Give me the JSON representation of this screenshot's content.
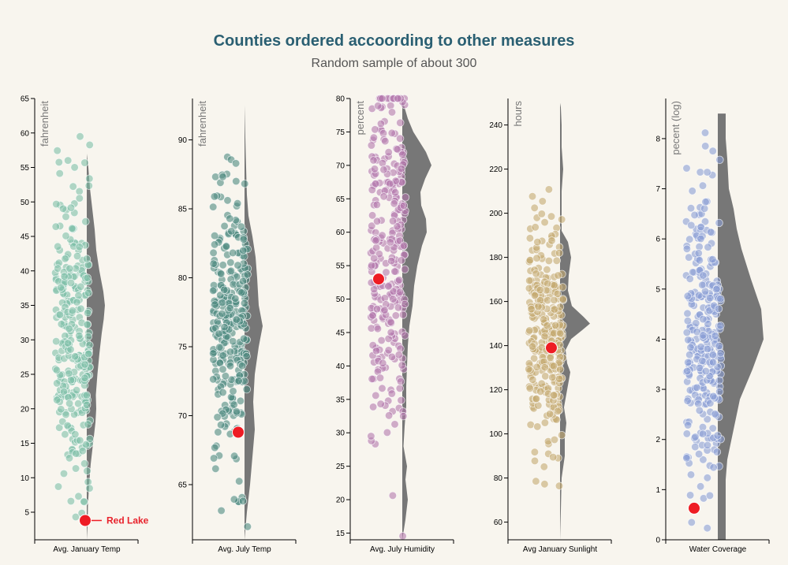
{
  "title": "Counties ordered accoording to other measures",
  "subtitle": "Random sample of about 300",
  "highlight": {
    "name": "Red Lake",
    "color": "#ee1c24"
  },
  "chart_data": [
    {
      "type": "scatter",
      "xlabel": "Avg. January Temp",
      "unit": "fahrenheit",
      "ylim": [
        1,
        65
      ],
      "ticks": [
        5,
        10,
        15,
        20,
        25,
        30,
        35,
        40,
        45,
        50,
        55,
        60,
        65
      ],
      "color": "#7fbfa8",
      "stroke": "#5a9e88",
      "mean": 32,
      "sd": 11,
      "min": 1,
      "max": 65,
      "seed": 11,
      "density": [
        [
          1,
          0
        ],
        [
          3,
          1
        ],
        [
          6,
          1.5
        ],
        [
          9,
          3
        ],
        [
          12,
          5
        ],
        [
          15,
          8
        ],
        [
          18,
          11
        ],
        [
          20,
          12
        ],
        [
          22,
          11.5
        ],
        [
          25,
          13.5
        ],
        [
          28,
          16
        ],
        [
          31,
          19
        ],
        [
          33,
          21.5
        ],
        [
          35,
          23
        ],
        [
          37,
          21
        ],
        [
          40,
          16
        ],
        [
          43,
          12
        ],
        [
          46,
          10
        ],
        [
          49,
          7
        ],
        [
          52,
          4
        ],
        [
          55,
          2
        ],
        [
          57,
          0
        ]
      ],
      "highlight_value": 3.8,
      "highlight_label": "Red Lake"
    },
    {
      "type": "scatter",
      "xlabel": "Avg. July Temp",
      "unit": "fahrenheit",
      "ylim": [
        61,
        93
      ],
      "ticks": [
        65,
        70,
        75,
        80,
        85,
        90
      ],
      "color": "#4e8a80",
      "stroke": "#3a6e66",
      "mean": 76.5,
      "sd": 5,
      "min": 61,
      "max": 92,
      "seed": 23,
      "density": [
        [
          61,
          0
        ],
        [
          63,
          3
        ],
        [
          65,
          7
        ],
        [
          67,
          10
        ],
        [
          69,
          13
        ],
        [
          71,
          11
        ],
        [
          73,
          13
        ],
        [
          75,
          18
        ],
        [
          76.5,
          23
        ],
        [
          78,
          18
        ],
        [
          80,
          16
        ],
        [
          81.5,
          14
        ],
        [
          83,
          10
        ],
        [
          84.5,
          5
        ],
        [
          86,
          3
        ],
        [
          89,
          1.5
        ],
        [
          92.5,
          0
        ]
      ],
      "highlight_value": 68.8
    },
    {
      "type": "scatter",
      "xlabel": "Avg. July Humidity",
      "unit": "percent",
      "ylim": [
        14,
        80
      ],
      "ticks": [
        15,
        20,
        25,
        30,
        35,
        40,
        45,
        50,
        55,
        60,
        65,
        70,
        75,
        80
      ],
      "color": "#b47aae",
      "stroke": "#925a8c",
      "mean": 58,
      "sd": 14,
      "min": 14,
      "max": 80,
      "seed": 37,
      "density": [
        [
          14,
          0
        ],
        [
          17,
          4
        ],
        [
          20,
          7
        ],
        [
          23,
          4
        ],
        [
          25,
          6
        ],
        [
          28,
          1.5
        ],
        [
          31,
          3
        ],
        [
          34,
          5
        ],
        [
          37,
          5
        ],
        [
          40,
          6
        ],
        [
          43,
          7
        ],
        [
          46,
          9
        ],
        [
          49,
          13
        ],
        [
          52,
          15
        ],
        [
          55,
          19
        ],
        [
          58,
          25
        ],
        [
          60,
          31
        ],
        [
          62,
          30
        ],
        [
          64,
          24
        ],
        [
          66,
          23
        ],
        [
          68,
          29
        ],
        [
          70,
          37
        ],
        [
          72,
          30
        ],
        [
          75,
          14
        ],
        [
          77,
          7
        ],
        [
          79,
          2
        ],
        [
          80,
          0
        ]
      ],
      "highlight_value": 53
    },
    {
      "type": "scatter",
      "xlabel": "Avg January Sunlight",
      "unit": "hours",
      "ylim": [
        52,
        252
      ],
      "ticks": [
        60,
        80,
        100,
        120,
        140,
        160,
        180,
        200,
        220,
        240
      ],
      "color": "#c4aa72",
      "stroke": "#a48a52",
      "mean": 145,
      "sd": 27,
      "min": 52,
      "max": 250,
      "seed": 53,
      "density": [
        [
          52,
          0
        ],
        [
          65,
          1
        ],
        [
          80,
          2
        ],
        [
          90,
          6
        ],
        [
          98,
          6
        ],
        [
          105,
          8
        ],
        [
          112,
          5
        ],
        [
          120,
          9
        ],
        [
          128,
          13
        ],
        [
          132,
          9
        ],
        [
          138,
          7
        ],
        [
          143,
          14
        ],
        [
          147,
          28
        ],
        [
          150,
          38
        ],
        [
          153,
          30
        ],
        [
          158,
          15
        ],
        [
          165,
          10
        ],
        [
          172,
          11
        ],
        [
          180,
          14
        ],
        [
          187,
          10
        ],
        [
          192,
          2
        ],
        [
          200,
          2
        ],
        [
          210,
          2
        ],
        [
          220,
          4
        ],
        [
          230,
          2
        ],
        [
          240,
          2
        ],
        [
          248,
          1
        ],
        [
          250,
          0
        ]
      ],
      "highlight_value": 139
    },
    {
      "type": "scatter",
      "xlabel": "Water Coverage",
      "unit": "pecent (log)",
      "ylim": [
        0,
        8.8
      ],
      "ticks": [
        0,
        1,
        2,
        3,
        4,
        5,
        6,
        7,
        8
      ],
      "color": "#8a9ed6",
      "stroke": "#6a7ebc",
      "mean": 4.2,
      "sd": 1.55,
      "min": 0,
      "max": 8.9,
      "seed": 71,
      "density": [
        [
          0,
          10
        ],
        [
          0.5,
          10
        ],
        [
          1.2,
          10
        ],
        [
          1.6,
          12
        ],
        [
          2.2,
          20
        ],
        [
          2.8,
          28
        ],
        [
          3.4,
          44
        ],
        [
          4,
          58
        ],
        [
          4.6,
          55
        ],
        [
          5.2,
          42
        ],
        [
          5.8,
          30
        ],
        [
          6.2,
          24
        ],
        [
          6.6,
          20
        ],
        [
          7,
          14
        ],
        [
          7.6,
          12
        ],
        [
          8,
          10
        ],
        [
          8.5,
          10
        ],
        [
          8.5,
          0
        ]
      ],
      "highlight_value": 0.63
    }
  ]
}
